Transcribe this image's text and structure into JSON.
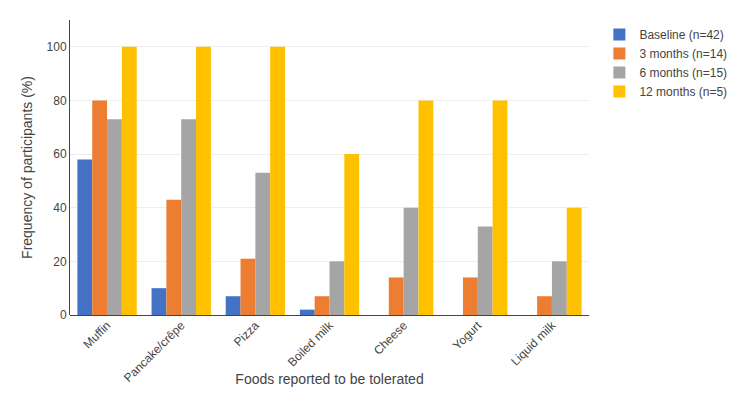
{
  "chart_data": {
    "type": "bar",
    "xlabel": "Foods reported to be tolerated",
    "ylabel": "Frequency of participants (%)",
    "categories": [
      "Muffin",
      "Pancake/crêpe",
      "Pizza",
      "Boiled milk",
      "Cheese",
      "Yogurt",
      "Liquid milk"
    ],
    "series": [
      {
        "name": "Baseline (n=42)",
        "color": "#4472C4",
        "values": [
          58,
          10,
          7,
          2,
          0,
          0,
          0
        ]
      },
      {
        "name": "3 months (n=14)",
        "color": "#ED7D31",
        "values": [
          80,
          43,
          21,
          7,
          14,
          14,
          7
        ]
      },
      {
        "name": "6 months (n=15)",
        "color": "#A5A5A5",
        "values": [
          73,
          73,
          53,
          20,
          40,
          33,
          20
        ]
      },
      {
        "name": "12 months (n=5)",
        "color": "#FFC000",
        "values": [
          100,
          100,
          100,
          60,
          80,
          80,
          40
        ]
      }
    ],
    "ylim": [
      0,
      110
    ],
    "yticks": [
      0,
      20,
      40,
      60,
      80,
      100
    ],
    "grid": true,
    "legend": "right"
  }
}
